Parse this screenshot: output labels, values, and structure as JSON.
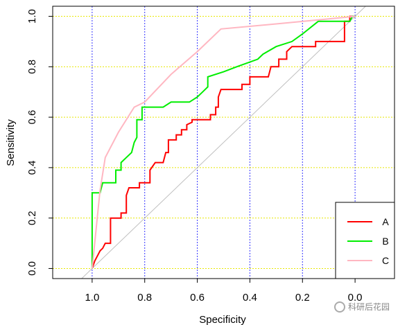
{
  "chart_data": {
    "type": "line",
    "title": "",
    "xlabel": "Specificity",
    "ylabel": "Sensitivity",
    "xlim": [
      1.15,
      -0.15
    ],
    "ylim": [
      -0.04,
      1.04
    ],
    "x_reversed": true,
    "x_ticks": [
      1.0,
      0.8,
      0.6,
      0.4,
      0.2,
      0.0
    ],
    "x_tick_labels": [
      "1.0",
      "0.8",
      "0.6",
      "0.4",
      "0.2",
      "0.0"
    ],
    "y_ticks": [
      0.0,
      0.2,
      0.4,
      0.6,
      0.8,
      1.0
    ],
    "y_tick_labels": [
      "0.0",
      "0.2",
      "0.4",
      "0.6",
      "0.8",
      "1.0"
    ],
    "grid": {
      "vertical": "blue dotted",
      "horizontal": "yellow dotted"
    },
    "reference_line": {
      "from": [
        1.0,
        0.0
      ],
      "to": [
        0.0,
        1.0
      ],
      "color": "#bfbfbf"
    },
    "legend": {
      "position": "bottom-right",
      "entries": [
        "A",
        "B",
        "C"
      ]
    },
    "series": [
      {
        "name": "A",
        "color": "#ff0000",
        "points": [
          [
            1.0,
            0.0
          ],
          [
            0.99,
            0.03
          ],
          [
            0.98,
            0.05
          ],
          [
            0.97,
            0.07
          ],
          [
            0.96,
            0.08
          ],
          [
            0.95,
            0.1
          ],
          [
            0.93,
            0.1
          ],
          [
            0.93,
            0.2
          ],
          [
            0.89,
            0.2
          ],
          [
            0.89,
            0.22
          ],
          [
            0.87,
            0.22
          ],
          [
            0.87,
            0.29
          ],
          [
            0.86,
            0.32
          ],
          [
            0.82,
            0.32
          ],
          [
            0.82,
            0.34
          ],
          [
            0.78,
            0.34
          ],
          [
            0.78,
            0.39
          ],
          [
            0.76,
            0.42
          ],
          [
            0.73,
            0.42
          ],
          [
            0.72,
            0.46
          ],
          [
            0.71,
            0.46
          ],
          [
            0.71,
            0.51
          ],
          [
            0.68,
            0.51
          ],
          [
            0.68,
            0.53
          ],
          [
            0.66,
            0.53
          ],
          [
            0.66,
            0.55
          ],
          [
            0.64,
            0.55
          ],
          [
            0.64,
            0.57
          ],
          [
            0.62,
            0.58
          ],
          [
            0.62,
            0.59
          ],
          [
            0.55,
            0.59
          ],
          [
            0.55,
            0.61
          ],
          [
            0.53,
            0.61
          ],
          [
            0.53,
            0.64
          ],
          [
            0.52,
            0.64
          ],
          [
            0.52,
            0.68
          ],
          [
            0.51,
            0.71
          ],
          [
            0.43,
            0.71
          ],
          [
            0.43,
            0.73
          ],
          [
            0.4,
            0.73
          ],
          [
            0.4,
            0.76
          ],
          [
            0.33,
            0.76
          ],
          [
            0.32,
            0.8
          ],
          [
            0.29,
            0.8
          ],
          [
            0.29,
            0.83
          ],
          [
            0.26,
            0.83
          ],
          [
            0.26,
            0.86
          ],
          [
            0.24,
            0.88
          ],
          [
            0.2,
            0.88
          ],
          [
            0.15,
            0.88
          ],
          [
            0.15,
            0.9
          ],
          [
            0.04,
            0.9
          ],
          [
            0.04,
            0.98
          ],
          [
            0.02,
            0.98
          ],
          [
            0.02,
            1.0
          ],
          [
            0.0,
            1.0
          ]
        ]
      },
      {
        "name": "B",
        "color": "#00ee00",
        "points": [
          [
            1.0,
            0.0
          ],
          [
            1.0,
            0.3
          ],
          [
            0.97,
            0.3
          ],
          [
            0.96,
            0.34
          ],
          [
            0.94,
            0.34
          ],
          [
            0.91,
            0.34
          ],
          [
            0.91,
            0.39
          ],
          [
            0.89,
            0.39
          ],
          [
            0.89,
            0.42
          ],
          [
            0.87,
            0.44
          ],
          [
            0.85,
            0.46
          ],
          [
            0.84,
            0.5
          ],
          [
            0.83,
            0.52
          ],
          [
            0.83,
            0.59
          ],
          [
            0.81,
            0.59
          ],
          [
            0.81,
            0.64
          ],
          [
            0.73,
            0.64
          ],
          [
            0.7,
            0.66
          ],
          [
            0.63,
            0.66
          ],
          [
            0.6,
            0.68
          ],
          [
            0.58,
            0.7
          ],
          [
            0.56,
            0.72
          ],
          [
            0.56,
            0.76
          ],
          [
            0.5,
            0.78
          ],
          [
            0.45,
            0.8
          ],
          [
            0.37,
            0.83
          ],
          [
            0.35,
            0.85
          ],
          [
            0.3,
            0.88
          ],
          [
            0.24,
            0.9
          ],
          [
            0.2,
            0.93
          ],
          [
            0.14,
            0.98
          ],
          [
            0.02,
            0.98
          ],
          [
            0.01,
            1.0
          ],
          [
            0.0,
            1.0
          ]
        ]
      },
      {
        "name": "C",
        "color": "#ffb6c1",
        "points": [
          [
            1.0,
            0.0
          ],
          [
            0.97,
            0.31
          ],
          [
            0.95,
            0.44
          ],
          [
            0.9,
            0.54
          ],
          [
            0.84,
            0.64
          ],
          [
            0.8,
            0.66
          ],
          [
            0.7,
            0.77
          ],
          [
            0.6,
            0.86
          ],
          [
            0.51,
            0.95
          ],
          [
            0.3,
            0.97
          ],
          [
            0.1,
            0.99
          ],
          [
            0.0,
            1.0
          ]
        ]
      }
    ]
  },
  "watermark": {
    "text": "科研后花园"
  }
}
